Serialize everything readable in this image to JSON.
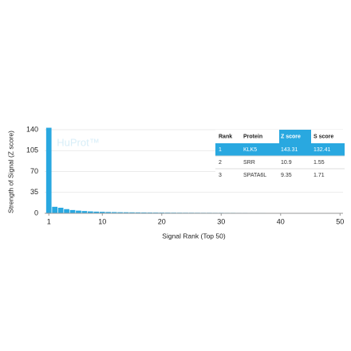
{
  "chart_data": {
    "type": "bar",
    "watermark": "HuProt™",
    "xlabel": "Signal Rank (Top 50)",
    "ylabel": "Strength of Signal (Z score)",
    "x": [
      1,
      2,
      3,
      4,
      5,
      6,
      7,
      8,
      9,
      10,
      11,
      12,
      13,
      14,
      15,
      16,
      17,
      18,
      19,
      20,
      21,
      22,
      23,
      24,
      25,
      26,
      27,
      28,
      29,
      30,
      31,
      32,
      33,
      34,
      35,
      36,
      37,
      38,
      39,
      40,
      41,
      42,
      43,
      44,
      45,
      46,
      47,
      48,
      49,
      50
    ],
    "values": [
      143.31,
      10.9,
      9.35,
      7,
      5.5,
      4.5,
      3.8,
      3.2,
      2.8,
      2.5,
      2.2,
      2,
      1.8,
      1.7,
      1.6,
      1.5,
      1.4,
      1.3,
      1.25,
      1.2,
      1.15,
      1.1,
      1.05,
      1,
      1,
      0.95,
      0.9,
      0.9,
      0.85,
      0.85,
      0.8,
      0.8,
      0.75,
      0.75,
      0.7,
      0.7,
      0.7,
      0.65,
      0.65,
      0.6,
      0.6,
      0.6,
      0.55,
      0.55,
      0.55,
      0.5,
      0.5,
      0.5,
      0.5,
      0.45
    ],
    "color": "#29a8e0",
    "xlim": [
      0.3,
      50.5
    ],
    "xticks": [
      1,
      10,
      20,
      30,
      40,
      50
    ],
    "ylim": [
      0,
      140
    ],
    "yticks": [
      0,
      35,
      70,
      105,
      140
    ],
    "grid": true,
    "table": {
      "columns": [
        "Rank",
        "Protein",
        "Z score",
        "S score"
      ],
      "rows": [
        [
          1,
          "KLK5",
          143.31,
          132.41
        ],
        [
          2,
          "SRR",
          10.9,
          1.55
        ],
        [
          3,
          "SPATA6L",
          9.35,
          1.71
        ]
      ],
      "highlight_color": "#29a8e0"
    }
  }
}
